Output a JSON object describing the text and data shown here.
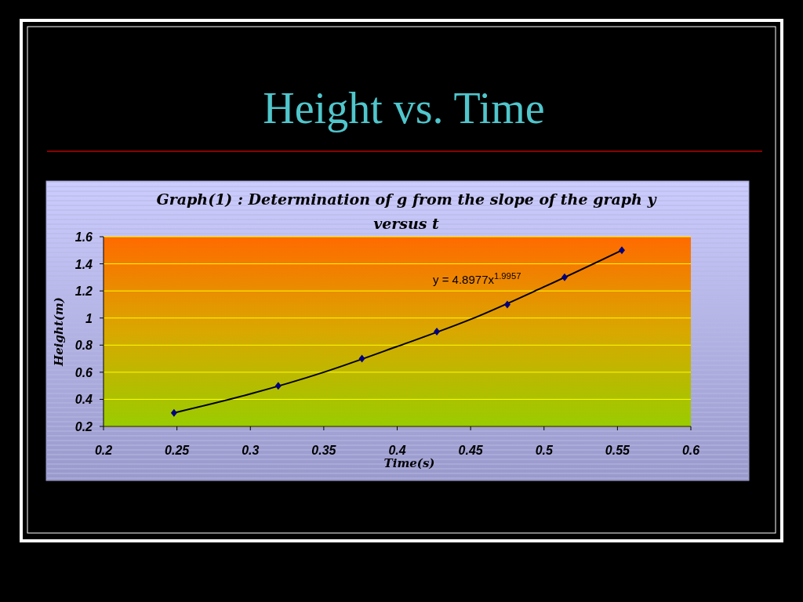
{
  "chart_data": {
    "type": "scatter",
    "title": "Height vs. Time",
    "subtitle": "Graph(1) : Determination of g from the slope of the graph y versus t",
    "xlabel": "Time(s)",
    "ylabel": "Height(m)",
    "series": [
      {
        "color": "#000080",
        "marker": "diamond",
        "x": [
          0.248,
          0.319,
          0.376,
          0.427,
          0.475,
          0.514,
          0.553
        ],
        "values": [
          0.3,
          0.5,
          0.7,
          0.9,
          1.1,
          1.3,
          1.5
        ]
      },
      {
        "type": "line",
        "color": "#000000",
        "marker": "none",
        "line_style": "solid",
        "x": [
          0.248,
          0.3,
          0.35,
          0.4,
          0.45,
          0.5,
          0.553
        ],
        "values": [
          0.3,
          0.44,
          0.6,
          0.79,
          0.99,
          1.23,
          1.5
        ]
      }
    ],
    "xlim": [
      0.2,
      0.6
    ],
    "xticks": [
      0.2,
      0.25,
      0.3,
      0.35,
      0.4,
      0.45,
      0.5,
      0.55,
      0.6
    ],
    "ylim": [
      0.2,
      1.6
    ],
    "yticks": [
      0.2,
      0.4,
      0.6,
      0.8,
      1,
      1.2,
      1.4,
      1.6
    ],
    "grid": "y",
    "annotations": [
      "y = 4.8977x$^{1.9957}$"
    ]
  }
}
